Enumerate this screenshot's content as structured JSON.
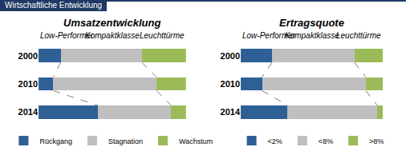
{
  "header": "Wirtschaftliche Entwicklung",
  "chart_data": [
    {
      "type": "bar",
      "title": "Umsatzentwicklung",
      "orientation": "horizontal",
      "stacked": true,
      "categories": [
        "2000",
        "2010",
        "2014"
      ],
      "annotations": [
        "Low-Performer",
        "Kompaktklasse",
        "Leuchttürme"
      ],
      "series": [
        {
          "name": "Rückgang",
          "color": "#2e5f95",
          "values": [
            15,
            10,
            40
          ]
        },
        {
          "name": "Stagnation",
          "color": "#bfbfbf",
          "values": [
            55,
            70,
            50
          ]
        },
        {
          "name": "Wachstum",
          "color": "#9bbb59",
          "values": [
            30,
            20,
            10
          ]
        }
      ],
      "xlim": [
        0,
        100
      ],
      "tick_labels": "y",
      "legend": "bottom"
    },
    {
      "type": "bar",
      "title": "Ertragsquote",
      "orientation": "horizontal",
      "stacked": true,
      "categories": [
        "2000",
        "2010",
        "2014"
      ],
      "annotations": [
        "Low-Performer",
        "Kompaktklasse",
        "Leuchttürme"
      ],
      "series": [
        {
          "name": "<2%",
          "color": "#2e5f95",
          "values": [
            22,
            15,
            33
          ]
        },
        {
          "name": "<8%",
          "color": "#bfbfbf",
          "values": [
            58,
            73,
            63
          ]
        },
        {
          "name": ">8%",
          "color": "#9bbb59",
          "values": [
            20,
            12,
            4
          ]
        }
      ],
      "xlim": [
        0,
        100
      ],
      "tick_labels": "y",
      "legend": "bottom"
    }
  ]
}
